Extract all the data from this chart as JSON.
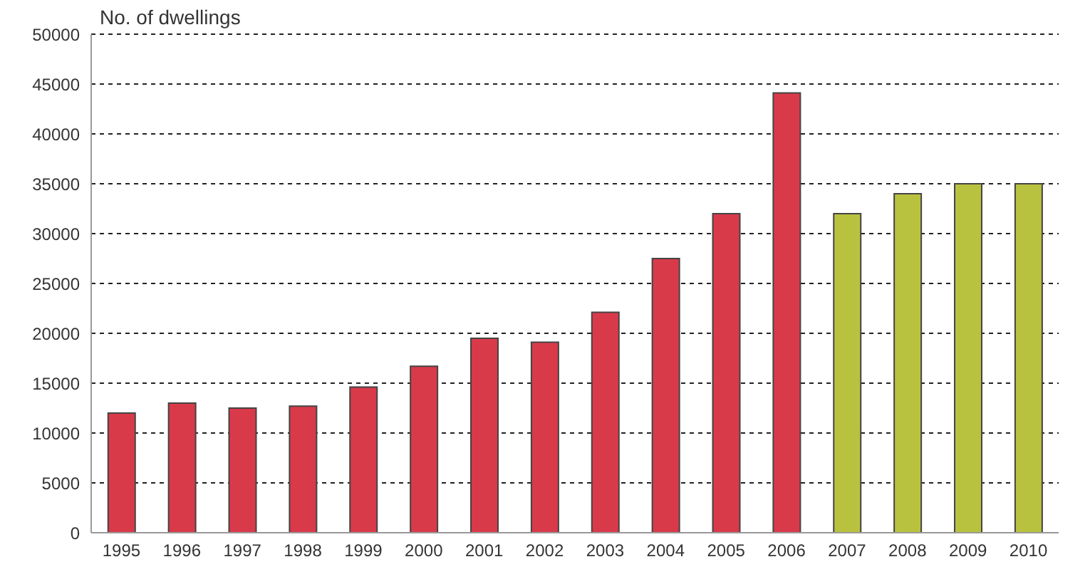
{
  "chart_data": {
    "type": "bar",
    "ylabel": "No. of dwellings",
    "categories": [
      "1995",
      "1996",
      "1997",
      "1998",
      "1999",
      "2000",
      "2001",
      "2002",
      "2003",
      "2004",
      "2005",
      "2006",
      "2007",
      "2008",
      "2009",
      "2010"
    ],
    "values": [
      12000,
      13000,
      12500,
      12700,
      14600,
      16700,
      19500,
      19100,
      22100,
      27500,
      32000,
      44100,
      32000,
      34000,
      35000,
      35000
    ],
    "colors": [
      "#d93a4a",
      "#d93a4a",
      "#d93a4a",
      "#d93a4a",
      "#d93a4a",
      "#d93a4a",
      "#d93a4a",
      "#d93a4a",
      "#d93a4a",
      "#d93a4a",
      "#d93a4a",
      "#d93a4a",
      "#b9c23f",
      "#b9c23f",
      "#b9c23f",
      "#b9c23f"
    ],
    "ylim": [
      0,
      50000
    ],
    "yticks": [
      0,
      5000,
      10000,
      15000,
      20000,
      25000,
      30000,
      35000,
      40000,
      45000,
      50000
    ],
    "grid": "y"
  }
}
